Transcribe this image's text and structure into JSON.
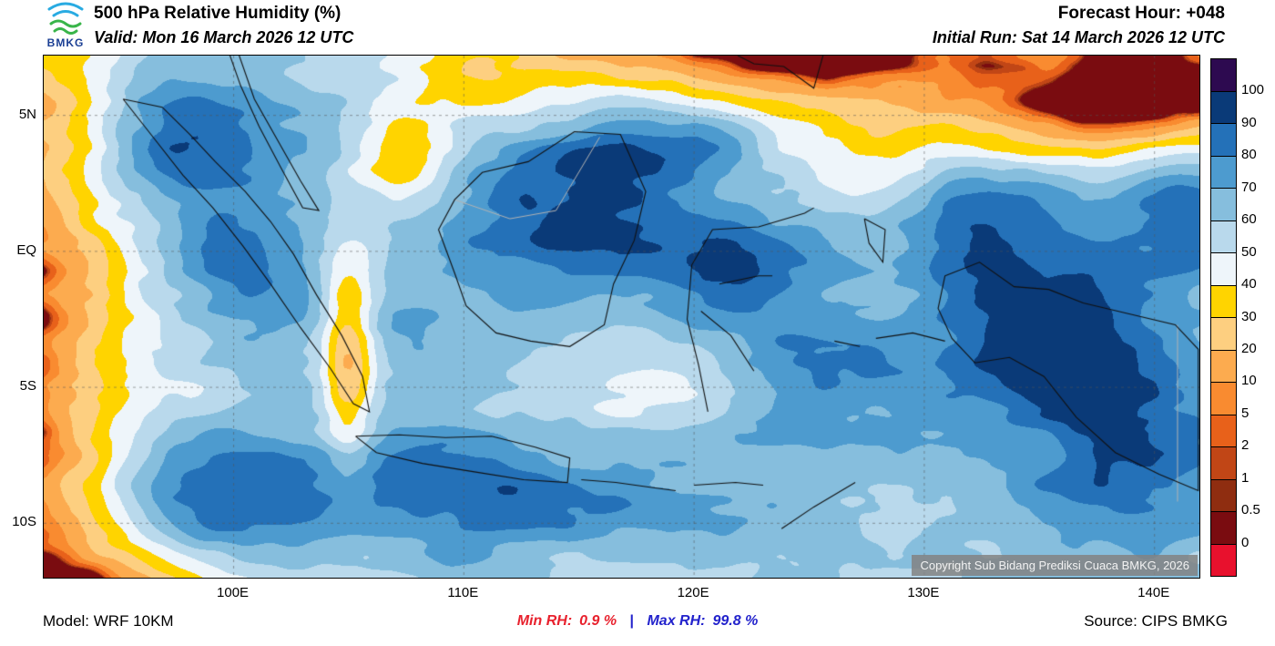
{
  "header": {
    "logo_text": "BMKG",
    "title": "500 hPa Relative Humidity (%)",
    "valid_label": "Valid: Mon 16 March 2026 12 UTC",
    "forecast_hour": "Forecast Hour: +048",
    "initial_run": "Initial Run: Sat 14 March 2026 12 UTC"
  },
  "map": {
    "lat_ticks": [
      "5N",
      "EQ",
      "5S",
      "10S"
    ],
    "lon_ticks": [
      "100E",
      "110E",
      "120E",
      "130E",
      "140E"
    ],
    "copyright": "Copyright Sub Bidang Prediksi Cuaca BMKG, 2026"
  },
  "colorbar": {
    "labels": [
      "100",
      "90",
      "80",
      "70",
      "60",
      "50",
      "40",
      "30",
      "20",
      "10",
      "5",
      "2",
      "1",
      "0.5",
      "0"
    ],
    "colors": [
      "#2d0a50",
      "#0a3a78",
      "#2471b8",
      "#4d9bcf",
      "#86bedd",
      "#b9d9ec",
      "#eef5fa",
      "#ffd400",
      "#fdcf80",
      "#fcab4f",
      "#f98b30",
      "#e8611a",
      "#c14616",
      "#8f2d10",
      "#7a0c10",
      "#e8112d"
    ]
  },
  "footer": {
    "model": "Model: WRF 10KM",
    "min_label": "Min RH:",
    "min_value": "0.9 %",
    "separator": "|",
    "max_label": "Max RH:",
    "max_value": "99.8 %",
    "source": "Source: CIPS BMKG"
  },
  "colors": {
    "min_rh": "#e8212d",
    "max_rh": "#2222cc",
    "separator": "#2222cc"
  }
}
